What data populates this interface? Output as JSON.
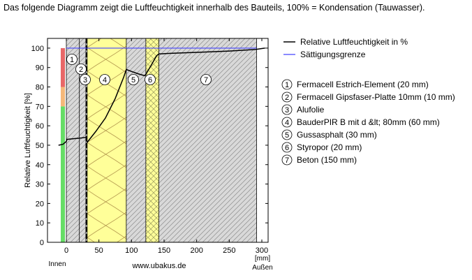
{
  "title": "Das folgende Diagramm zeigt die Luftfeuchtigkeit innerhalb des Bauteils, 100% = Kondensation (Tauwasser).",
  "chart_data": {
    "type": "line",
    "ylabel": "Relative Luftfeuchtigkeit [%]",
    "xlabel": "[mm]",
    "x_left_label": "Innen",
    "x_right_label": "Außen",
    "footer": "www.ubakus.de",
    "xlim": [
      -15,
      305
    ],
    "ylim": [
      0,
      105
    ],
    "x_ticks": [
      0,
      50,
      100,
      150,
      200,
      250,
      300
    ],
    "y_ticks": [
      0,
      10,
      20,
      30,
      40,
      50,
      60,
      70,
      80,
      90,
      100
    ],
    "grid": false,
    "legend_position": "right",
    "layers": [
      {
        "num": "1",
        "name": "Fermacell Estrich-Element (20 mm)",
        "x0": 0,
        "x1": 20,
        "fill": "#d9d9d9",
        "pattern": "hatch"
      },
      {
        "num": "2",
        "name": "Fermacell Gipsfaser-Platte 10mm (10 mm)",
        "x0": 20,
        "x1": 30,
        "fill": "#d9d9d9",
        "pattern": "hatch"
      },
      {
        "num": "3",
        "name": "Alufolie",
        "x0": 30,
        "x1": 32,
        "fill": "#ffffff",
        "pattern": "foil"
      },
      {
        "num": "4",
        "name": "BauderPIR B mit d &lt; 80mm (60 mm)",
        "x0": 32,
        "x1": 92,
        "fill": "#ffff99",
        "pattern": "insulation"
      },
      {
        "num": "5",
        "name": "Gussasphalt (30 mm)",
        "x0": 92,
        "x1": 122,
        "fill": "#d9d9d9",
        "pattern": "hatch"
      },
      {
        "num": "6",
        "name": "Styropor (20 mm)",
        "x0": 122,
        "x1": 142,
        "fill": "#ffff99",
        "pattern": "crosshatch"
      },
      {
        "num": "7",
        "name": "Beton (150 mm)",
        "x0": 142,
        "x1": 292,
        "fill": "#d9d9d9",
        "pattern": "hatch"
      }
    ],
    "humidity_bar": [
      {
        "from": 0,
        "to": 70,
        "color": "#66dd66"
      },
      {
        "from": 70,
        "to": 80,
        "color": "#f5b87a"
      },
      {
        "from": 80,
        "to": 100,
        "color": "#e86868"
      }
    ],
    "series": [
      {
        "name": "Relative Luftfeuchtigkeit in %",
        "color": "#000000",
        "x": [
          -12,
          -5,
          0,
          1,
          10,
          20,
          30,
          32,
          45,
          60,
          75,
          88,
          92,
          100,
          110,
          120,
          122,
          130,
          138,
          140,
          142,
          160,
          200,
          250,
          290,
          300,
          305
        ],
        "y": [
          50,
          50.5,
          52,
          53,
          53.3,
          53.6,
          54,
          51.5,
          57,
          64,
          74,
          85,
          89,
          88,
          86.8,
          85.8,
          86.5,
          91,
          95.8,
          96.5,
          97,
          97.3,
          97.8,
          98.5,
          99.3,
          99.8,
          100
        ]
      },
      {
        "name": "Sättigungsgrenze",
        "color": "#4444ff",
        "x": [
          0,
          292
        ],
        "y": [
          100,
          100
        ]
      }
    ]
  }
}
